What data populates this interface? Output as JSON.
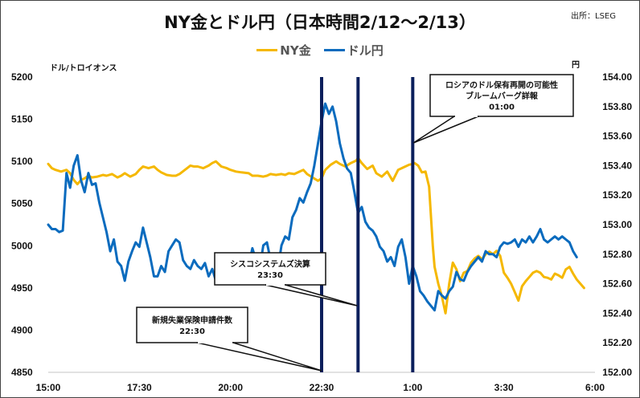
{
  "header": {
    "title": "NY金とドル円（日本時間2/12～2/13）",
    "source": "出所：LSEG"
  },
  "legend": [
    {
      "label": "NY金",
      "color": "#F5B800"
    },
    {
      "label": "ドル円",
      "color": "#0A6BBE"
    }
  ],
  "axes": {
    "left_title": "ドル/トロイオンス",
    "right_title": "円"
  },
  "colors": {
    "gold": "#F5B800",
    "usdjpy": "#0A6BBE",
    "event_line": "#0B1F5C",
    "grid": "#D9D9D9"
  },
  "chart_data": {
    "type": "line",
    "title": "NY金とドル円（日本時間2/12～2/13）",
    "source": "出所：LSEG",
    "xlabel": "",
    "x_ticks": [
      "15:00",
      "17:30",
      "20:00",
      "22:30",
      "1:00",
      "3:30",
      "6:00"
    ],
    "x_range_hours": [
      0,
      15
    ],
    "y_left": {
      "label": "ドル/トロイオンス",
      "ticks": [
        5200,
        5150,
        5100,
        5050,
        5000,
        4950,
        4900,
        4850
      ],
      "ylim": [
        4850,
        5200
      ]
    },
    "y_right": {
      "label": "円",
      "ticks": [
        "154.00",
        "153.80",
        "153.60",
        "153.40",
        "153.20",
        "153.00",
        "152.80",
        "152.60",
        "152.40",
        "152.20",
        "152.00"
      ],
      "ylim": [
        152.0,
        154.0
      ]
    },
    "grid": false,
    "legend_position": "top",
    "events": [
      {
        "time": "22:30",
        "hour_offset": 7.5,
        "label_lines": [
          "新規失業保険申請件数",
          "22:30"
        ]
      },
      {
        "time": "23:30",
        "hour_offset": 8.5,
        "label_lines": [
          "シスコシステムズ決算",
          "23:30"
        ]
      },
      {
        "time": "01:00",
        "hour_offset": 10.0,
        "label_lines": [
          "ロシアのドル保有再開の可能性",
          "ブルームバーグ詳報",
          "01:00"
        ]
      }
    ],
    "series": [
      {
        "name": "NY金",
        "axis": "left",
        "color": "#F5B800",
        "x_hours": [
          0,
          0.1,
          0.2,
          0.35,
          0.5,
          0.6,
          0.7,
          0.8,
          0.9,
          1.0,
          1.1,
          1.2,
          1.35,
          1.5,
          1.6,
          1.75,
          1.9,
          2.0,
          2.1,
          2.25,
          2.4,
          2.5,
          2.6,
          2.75,
          2.9,
          3.0,
          3.1,
          3.25,
          3.4,
          3.5,
          3.6,
          3.75,
          3.9,
          4.0,
          4.1,
          4.25,
          4.4,
          4.5,
          4.6,
          4.75,
          4.9,
          5.0,
          5.15,
          5.3,
          5.5,
          5.6,
          5.75,
          5.9,
          6.0,
          6.1,
          6.25,
          6.4,
          6.5,
          6.6,
          6.75,
          6.9,
          7.0,
          7.1,
          7.25,
          7.4,
          7.5,
          7.6,
          7.75,
          7.9,
          8.0,
          8.15,
          8.3,
          8.45,
          8.5,
          8.6,
          8.75,
          8.9,
          9.0,
          9.15,
          9.3,
          9.45,
          9.6,
          9.75,
          9.9,
          10.0,
          10.05,
          10.15,
          10.25,
          10.35,
          10.45,
          10.55,
          10.6,
          10.7,
          10.8,
          10.9,
          11.0,
          11.1,
          11.2,
          11.3,
          11.4,
          11.5,
          11.6,
          11.7,
          11.8,
          11.9,
          12.0,
          12.1,
          12.2,
          12.3,
          12.4,
          12.5,
          12.6,
          12.7,
          12.8,
          12.9,
          13.0,
          13.1,
          13.2,
          13.3,
          13.4,
          13.5,
          13.6,
          13.7,
          13.8,
          13.9,
          14.0,
          14.1,
          14.2,
          14.3,
          14.4,
          14.5,
          14.6,
          14.7
        ],
        "values": [
          5097,
          5092,
          5090,
          5088,
          5090,
          5086,
          5078,
          5073,
          5078,
          5080,
          5083,
          5081,
          5082,
          5084,
          5083,
          5085,
          5081,
          5083,
          5086,
          5082,
          5085,
          5090,
          5094,
          5092,
          5094,
          5090,
          5087,
          5084,
          5083,
          5083,
          5085,
          5090,
          5095,
          5094,
          5094,
          5092,
          5095,
          5098,
          5100,
          5094,
          5092,
          5090,
          5088,
          5087,
          5086,
          5083,
          5083,
          5082,
          5083,
          5085,
          5084,
          5085,
          5084,
          5086,
          5085,
          5088,
          5090,
          5085,
          5081,
          5077,
          5080,
          5090,
          5096,
          5100,
          5097,
          5094,
          5098,
          5101,
          5104,
          5098,
          5091,
          5095,
          5086,
          5082,
          5088,
          5077,
          5090,
          5093,
          5096,
          5097,
          5098,
          5095,
          5087,
          5088,
          5070,
          5000,
          4975,
          4955,
          4940,
          4920,
          4955,
          4980,
          4972,
          4958,
          4968,
          4970,
          4980,
          4985,
          4988,
          4984,
          4990,
          4993,
          4990,
          4994,
          4988,
          4968,
          4962,
          4955,
          4945,
          4935,
          4952,
          4958,
          4963,
          4968,
          4970,
          4968,
          4963,
          4962,
          4960,
          4967,
          4965,
          4962,
          4972,
          4975,
          4967,
          4960,
          4955,
          4950,
          4945,
          4940,
          4942,
          4940
        ],
        "note": "values approximated from pixel positions"
      },
      {
        "name": "ドル円",
        "axis": "right",
        "color": "#0A6BBE",
        "x_hours": [
          0,
          0.1,
          0.2,
          0.3,
          0.4,
          0.5,
          0.6,
          0.7,
          0.8,
          0.9,
          1.0,
          1.1,
          1.2,
          1.3,
          1.4,
          1.5,
          1.6,
          1.7,
          1.8,
          1.9,
          2.0,
          2.1,
          2.2,
          2.3,
          2.4,
          2.5,
          2.6,
          2.7,
          2.8,
          2.9,
          3.0,
          3.1,
          3.2,
          3.3,
          3.4,
          3.5,
          3.6,
          3.7,
          3.8,
          3.9,
          4.0,
          4.1,
          4.2,
          4.3,
          4.4,
          4.5,
          4.6,
          4.7,
          4.8,
          4.9,
          5.0,
          5.1,
          5.2,
          5.3,
          5.4,
          5.5,
          5.6,
          5.7,
          5.8,
          5.9,
          6.0,
          6.1,
          6.2,
          6.3,
          6.4,
          6.5,
          6.6,
          6.7,
          6.8,
          6.9,
          7.0,
          7.1,
          7.2,
          7.3,
          7.4,
          7.5,
          7.6,
          7.7,
          7.8,
          7.9,
          8.0,
          8.1,
          8.2,
          8.3,
          8.4,
          8.5,
          8.6,
          8.7,
          8.8,
          8.9,
          9.0,
          9.1,
          9.2,
          9.3,
          9.4,
          9.5,
          9.6,
          9.7,
          9.8,
          9.9,
          10.0,
          10.1,
          10.2,
          10.3,
          10.4,
          10.5,
          10.6,
          10.7,
          10.8,
          10.9,
          11.0,
          11.1,
          11.2,
          11.3,
          11.4,
          11.5,
          11.6,
          11.7,
          11.8,
          11.9,
          12.0,
          12.1,
          12.2,
          12.3,
          12.4,
          12.5,
          12.6,
          12.7,
          12.8,
          12.9,
          13.0,
          13.1,
          13.2,
          13.3,
          13.4,
          13.5,
          13.6,
          13.7,
          13.8,
          13.9,
          14.0,
          14.1,
          14.2,
          14.3,
          14.4,
          14.5,
          14.6,
          14.7
        ],
        "values": [
          153.0,
          152.97,
          152.97,
          152.95,
          152.96,
          153.35,
          153.25,
          153.4,
          153.47,
          153.3,
          153.22,
          153.35,
          153.27,
          153.28,
          153.15,
          153.05,
          152.95,
          152.82,
          152.9,
          152.75,
          152.72,
          152.62,
          152.75,
          152.82,
          152.88,
          152.85,
          152.98,
          152.88,
          152.78,
          152.65,
          152.65,
          152.72,
          152.68,
          152.82,
          152.86,
          152.9,
          152.88,
          152.76,
          152.72,
          152.7,
          152.76,
          152.72,
          152.7,
          152.74,
          152.65,
          152.7,
          152.62,
          152.7,
          152.6,
          152.76,
          152.78,
          152.74,
          152.7,
          152.66,
          152.68,
          152.72,
          152.84,
          152.76,
          152.7,
          152.86,
          152.88,
          152.76,
          152.78,
          152.7,
          152.86,
          152.92,
          152.9,
          153.05,
          153.1,
          153.18,
          153.15,
          153.22,
          153.28,
          153.4,
          153.55,
          153.7,
          153.82,
          153.75,
          153.8,
          153.7,
          153.55,
          153.45,
          153.38,
          153.35,
          153.22,
          153.08,
          153.12,
          153.02,
          152.98,
          152.96,
          152.92,
          152.85,
          152.82,
          152.75,
          152.78,
          152.72,
          152.85,
          152.9,
          152.78,
          152.6,
          152.72,
          152.65,
          152.55,
          152.52,
          152.48,
          152.45,
          152.42,
          152.55,
          152.52,
          152.5,
          152.55,
          152.58,
          152.68,
          152.63,
          152.62,
          152.68,
          152.72,
          152.75,
          152.78,
          152.75,
          152.82,
          152.8,
          152.8,
          152.78,
          152.85,
          152.88,
          152.87,
          152.88,
          152.9,
          152.85,
          152.9,
          152.88,
          152.92,
          152.88,
          152.92,
          152.97,
          152.9,
          152.88,
          152.9,
          152.92,
          152.9,
          152.92,
          152.9,
          152.88,
          152.82,
          152.78
        ]
      }
    ]
  }
}
